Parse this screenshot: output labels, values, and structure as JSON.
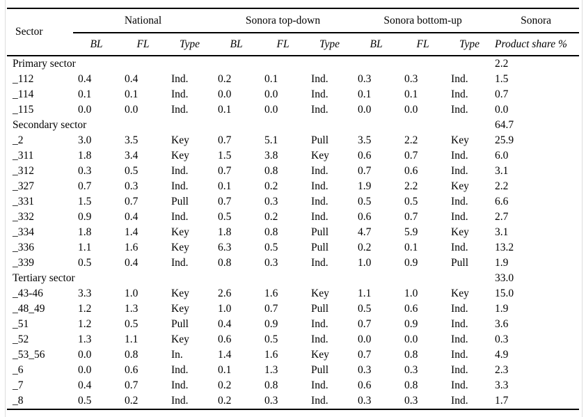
{
  "table": {
    "sector_header": "Sector",
    "groups": [
      "National",
      "Sonora top-down",
      "Sonora bottom-up",
      "Sonora"
    ],
    "subheaders": [
      "BL",
      "FL",
      "Type",
      "BL",
      "FL",
      "Type",
      "BL",
      "FL",
      "Type"
    ],
    "share_header": "Product share %",
    "rows": [
      {
        "group": true,
        "label": "Primary sector",
        "share": "2.2"
      },
      {
        "group": false,
        "label": "_112",
        "values": [
          "0.4",
          "0.4",
          "Ind.",
          "0.2",
          "0.1",
          "Ind.",
          "0.3",
          "0.3",
          "Ind."
        ],
        "share": "1.5"
      },
      {
        "group": false,
        "label": "_114",
        "values": [
          "0.1",
          "0.1",
          "Ind.",
          "0.0",
          "0.0",
          "Ind.",
          "0.1",
          "0.1",
          "Ind."
        ],
        "share": "0.7"
      },
      {
        "group": false,
        "label": "_115",
        "values": [
          "0.0",
          "0.0",
          "Ind.",
          "0.1",
          "0.0",
          "Ind.",
          "0.0",
          "0.0",
          "Ind."
        ],
        "share": "0.0"
      },
      {
        "group": true,
        "label": "Secondary sector",
        "share": "64.7"
      },
      {
        "group": false,
        "label": "_2",
        "values": [
          "3.0",
          "3.5",
          "Key",
          "0.7",
          "5.1",
          "Pull",
          "3.5",
          "2.2",
          "Key"
        ],
        "share": "25.9"
      },
      {
        "group": false,
        "label": "_311",
        "values": [
          "1.8",
          "3.4",
          "Key",
          "1.5",
          "3.8",
          "Key",
          "0.6",
          "0.7",
          "Ind."
        ],
        "share": "6.0"
      },
      {
        "group": false,
        "label": "_312",
        "values": [
          "0.3",
          "0.5",
          "Ind.",
          "0.7",
          "0.8",
          "Ind.",
          "0.7",
          "0.6",
          "Ind."
        ],
        "share": "3.1"
      },
      {
        "group": false,
        "label": "_327",
        "values": [
          "0.7",
          "0.3",
          "Ind.",
          "0.1",
          "0.2",
          "Ind.",
          "1.9",
          "2.2",
          "Key"
        ],
        "share": "2.2"
      },
      {
        "group": false,
        "label": "_331",
        "values": [
          "1.5",
          "0.7",
          "Pull",
          "0.7",
          "0.3",
          "Ind.",
          "0.5",
          "0.5",
          "Ind."
        ],
        "share": "6.6"
      },
      {
        "group": false,
        "label": "_332",
        "values": [
          "0.9",
          "0.4",
          "Ind.",
          "0.5",
          "0.2",
          "Ind.",
          "0.6",
          "0.7",
          "Ind."
        ],
        "share": "2.7"
      },
      {
        "group": false,
        "label": "_334",
        "values": [
          "1.8",
          "1.4",
          "Key",
          "1.8",
          "0.8",
          "Pull",
          "4.7",
          "5.9",
          "Key"
        ],
        "share": "3.1"
      },
      {
        "group": false,
        "label": "_336",
        "values": [
          "1.1",
          "1.6",
          "Key",
          "6.3",
          "0.5",
          "Pull",
          "0.2",
          "0.1",
          "Ind."
        ],
        "share": "13.2"
      },
      {
        "group": false,
        "label": "_339",
        "values": [
          "0.5",
          "0.4",
          "Ind.",
          "0.8",
          "0.3",
          "Ind.",
          "1.0",
          "0.9",
          "Pull"
        ],
        "share": "1.9"
      },
      {
        "group": true,
        "label": "Tertiary sector",
        "share": "33.0"
      },
      {
        "group": false,
        "label": "_43-46",
        "values": [
          "3.3",
          "1.0",
          "Key",
          "2.6",
          "1.6",
          "Key",
          "1.1",
          "1.0",
          "Key"
        ],
        "share": "15.0"
      },
      {
        "group": false,
        "label": "_48_49",
        "values": [
          "1.2",
          "1.3",
          "Key",
          "1.0",
          "0.7",
          "Pull",
          "0.5",
          "0.6",
          "Ind."
        ],
        "share": "1.9"
      },
      {
        "group": false,
        "label": "_51",
        "values": [
          "1.2",
          "0.5",
          "Pull",
          "0.4",
          "0.9",
          "Ind.",
          "0.7",
          "0.9",
          "Ind."
        ],
        "share": "3.6"
      },
      {
        "group": false,
        "label": "_52",
        "values": [
          "1.3",
          "1.1",
          "Key",
          "0.6",
          "0.5",
          "Ind.",
          "0.0",
          "0.0",
          "Ind."
        ],
        "share": "0.3"
      },
      {
        "group": false,
        "label": "_53_56",
        "values": [
          "0.0",
          "0.8",
          "In.",
          "1.4",
          "1.6",
          "Key",
          "0.7",
          "0.8",
          "Ind."
        ],
        "share": "4.9"
      },
      {
        "group": false,
        "label": "_6",
        "values": [
          "0.0",
          "0.6",
          "Ind.",
          "0.1",
          "1.3",
          "Pull",
          "0.3",
          "0.3",
          "Ind."
        ],
        "share": "2.3"
      },
      {
        "group": false,
        "label": "_7",
        "values": [
          "0.4",
          "0.7",
          "Ind.",
          "0.2",
          "0.8",
          "Ind.",
          "0.6",
          "0.8",
          "Ind."
        ],
        "share": "3.3"
      },
      {
        "group": false,
        "label": "_8",
        "values": [
          "0.5",
          "0.2",
          "Ind.",
          "0.2",
          "0.3",
          "Ind.",
          "0.3",
          "0.3",
          "Ind."
        ],
        "share": "1.7"
      }
    ]
  }
}
